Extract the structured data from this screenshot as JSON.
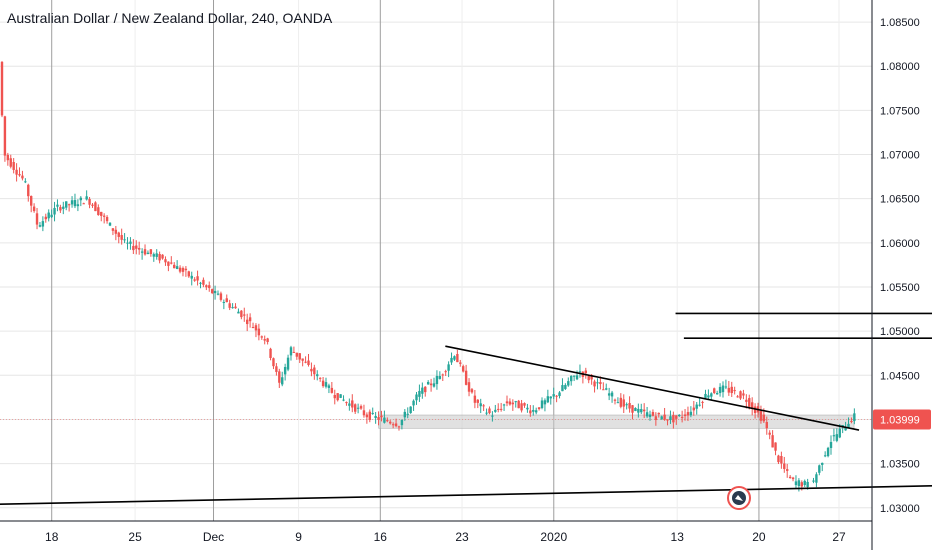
{
  "chart_data": {
    "type": "candlestick",
    "title": "Australian Dollar / New Zealand Dollar, 240, OANDA",
    "ylim": [
      1.0285,
      1.0875
    ],
    "y_ticks": [
      "1.03000",
      "1.03500",
      "1.04000",
      "1.04500",
      "1.05000",
      "1.05500",
      "1.06000",
      "1.06500",
      "1.07000",
      "1.07500",
      "1.08000",
      "1.08500"
    ],
    "x_ticks": [
      "18",
      "25",
      "Dec",
      "9",
      "16",
      "23",
      "2020",
      "13",
      "20",
      "27"
    ],
    "last_price": "1.03999",
    "price_path": [
      [
        0,
        1.0805
      ],
      [
        0.3,
        1.07
      ],
      [
        1.5,
        1.067
      ],
      [
        2.3,
        1.062
      ],
      [
        3.5,
        1.064
      ],
      [
        5.3,
        1.065
      ],
      [
        7.5,
        1.06
      ],
      [
        10,
        1.058
      ],
      [
        12,
        1.0555
      ],
      [
        14.5,
        1.052
      ],
      [
        16,
        1.049
      ],
      [
        16.8,
        1.044
      ],
      [
        17.5,
        1.048
      ],
      [
        18.5,
        1.046
      ],
      [
        20,
        1.043
      ],
      [
        22,
        1.0405
      ],
      [
        23,
        1.04
      ],
      [
        24,
        1.0395
      ],
      [
        25.2,
        1.043
      ],
      [
        26.5,
        1.045
      ],
      [
        27.3,
        1.0475
      ],
      [
        28.5,
        1.042
      ],
      [
        29.5,
        1.0405
      ],
      [
        30.5,
        1.042
      ],
      [
        32,
        1.041
      ],
      [
        33.5,
        1.043
      ],
      [
        34.8,
        1.0455
      ],
      [
        36.5,
        1.043
      ],
      [
        37.5,
        1.0415
      ],
      [
        39,
        1.0405
      ],
      [
        40.5,
        1.04
      ],
      [
        41.5,
        1.041
      ],
      [
        42.5,
        1.043
      ],
      [
        43.5,
        1.0435
      ],
      [
        44.7,
        1.0425
      ],
      [
        45.8,
        1.04
      ],
      [
        46.7,
        1.0355
      ],
      [
        47.5,
        1.033
      ],
      [
        48.7,
        1.0325
      ],
      [
        49.8,
        1.0375
      ],
      [
        51.2,
        1.0403
      ]
    ],
    "support_zone": {
      "x": [
        22.7,
        51.2
      ],
      "y": [
        1.039,
        1.0405
      ]
    },
    "trendlines": [
      {
        "x1": 26.7,
        "y1": 1.0483,
        "x2": 51.5,
        "y2": 1.0388
      },
      {
        "x1": 0,
        "y1": 1.0304,
        "x2": 59,
        "y2": 1.0326
      },
      {
        "x1": 40.5,
        "y1": 1.052,
        "x2": 59,
        "y2": 1.052
      },
      {
        "x1": 41,
        "y1": 1.0492,
        "x2": 59,
        "y2": 1.0492
      }
    ],
    "grid": true,
    "colors": {
      "up": "#26a69a",
      "down": "#ef5350",
      "price_tag": "#ef5350",
      "grid": "#e6e6e6",
      "trendline": "#000000",
      "zone": "#c8c8c8"
    },
    "logo_icon": "tradingview-watermark-icon"
  }
}
